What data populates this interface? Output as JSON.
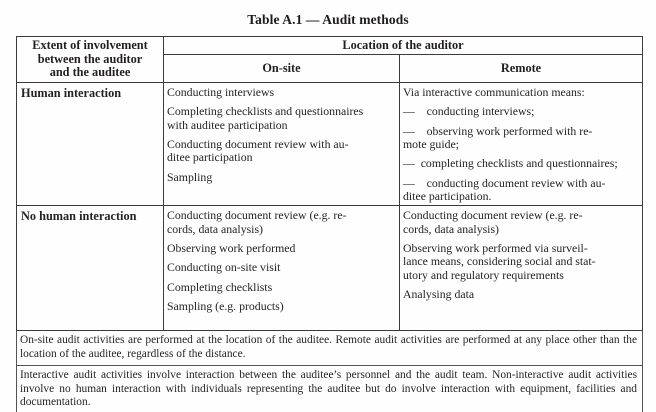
{
  "title": "Table A.1 — Audit methods",
  "table": {
    "corner_header": "Extent of involvement\nbetween the auditor\nand the auditee",
    "location_header": "Location of the auditor",
    "col_onsite": "On-site",
    "col_remote": "Remote",
    "rows": [
      {
        "label": "Human interaction",
        "onsite": [
          "Conducting interviews",
          "Completing checklists and questionnaires\nwith auditee participation",
          "Conducting document review with au-\nditee participation",
          "Sampling"
        ],
        "remote": [
          "Via interactive communication means:",
          "— conducting interviews;",
          "— observing work performed with re-\nmote guide;",
          "— completing checklists and questionnaires;",
          "— conducting document review with au-\nditee participation."
        ]
      },
      {
        "label": "No human interaction",
        "onsite": [
          "Conducting document review (e.g. re-\ncords, data analysis)",
          "Observing work performed",
          "Conducting on-site visit",
          "Completing checklists",
          "Sampling (e.g. products)"
        ],
        "remote": [
          "Conducting document review (e.g. re-\ncords, data analysis)",
          "Observing work performed via surveil-\nlance means, considering social and stat-\nutory and regulatory requirements",
          "Analysing data"
        ]
      }
    ],
    "notes": [
      "On-site audit activities are performed at the location of the auditee. Remote audit activities are performed at any place other than the location of the auditee, regardless of the distance.",
      "Interactive audit activities involve interaction between the auditee’s personnel and the audit team. Non-interactive audit activities involve no human interaction with individuals representing the auditee but do involve interaction with equipment, facilities and documentation."
    ]
  }
}
